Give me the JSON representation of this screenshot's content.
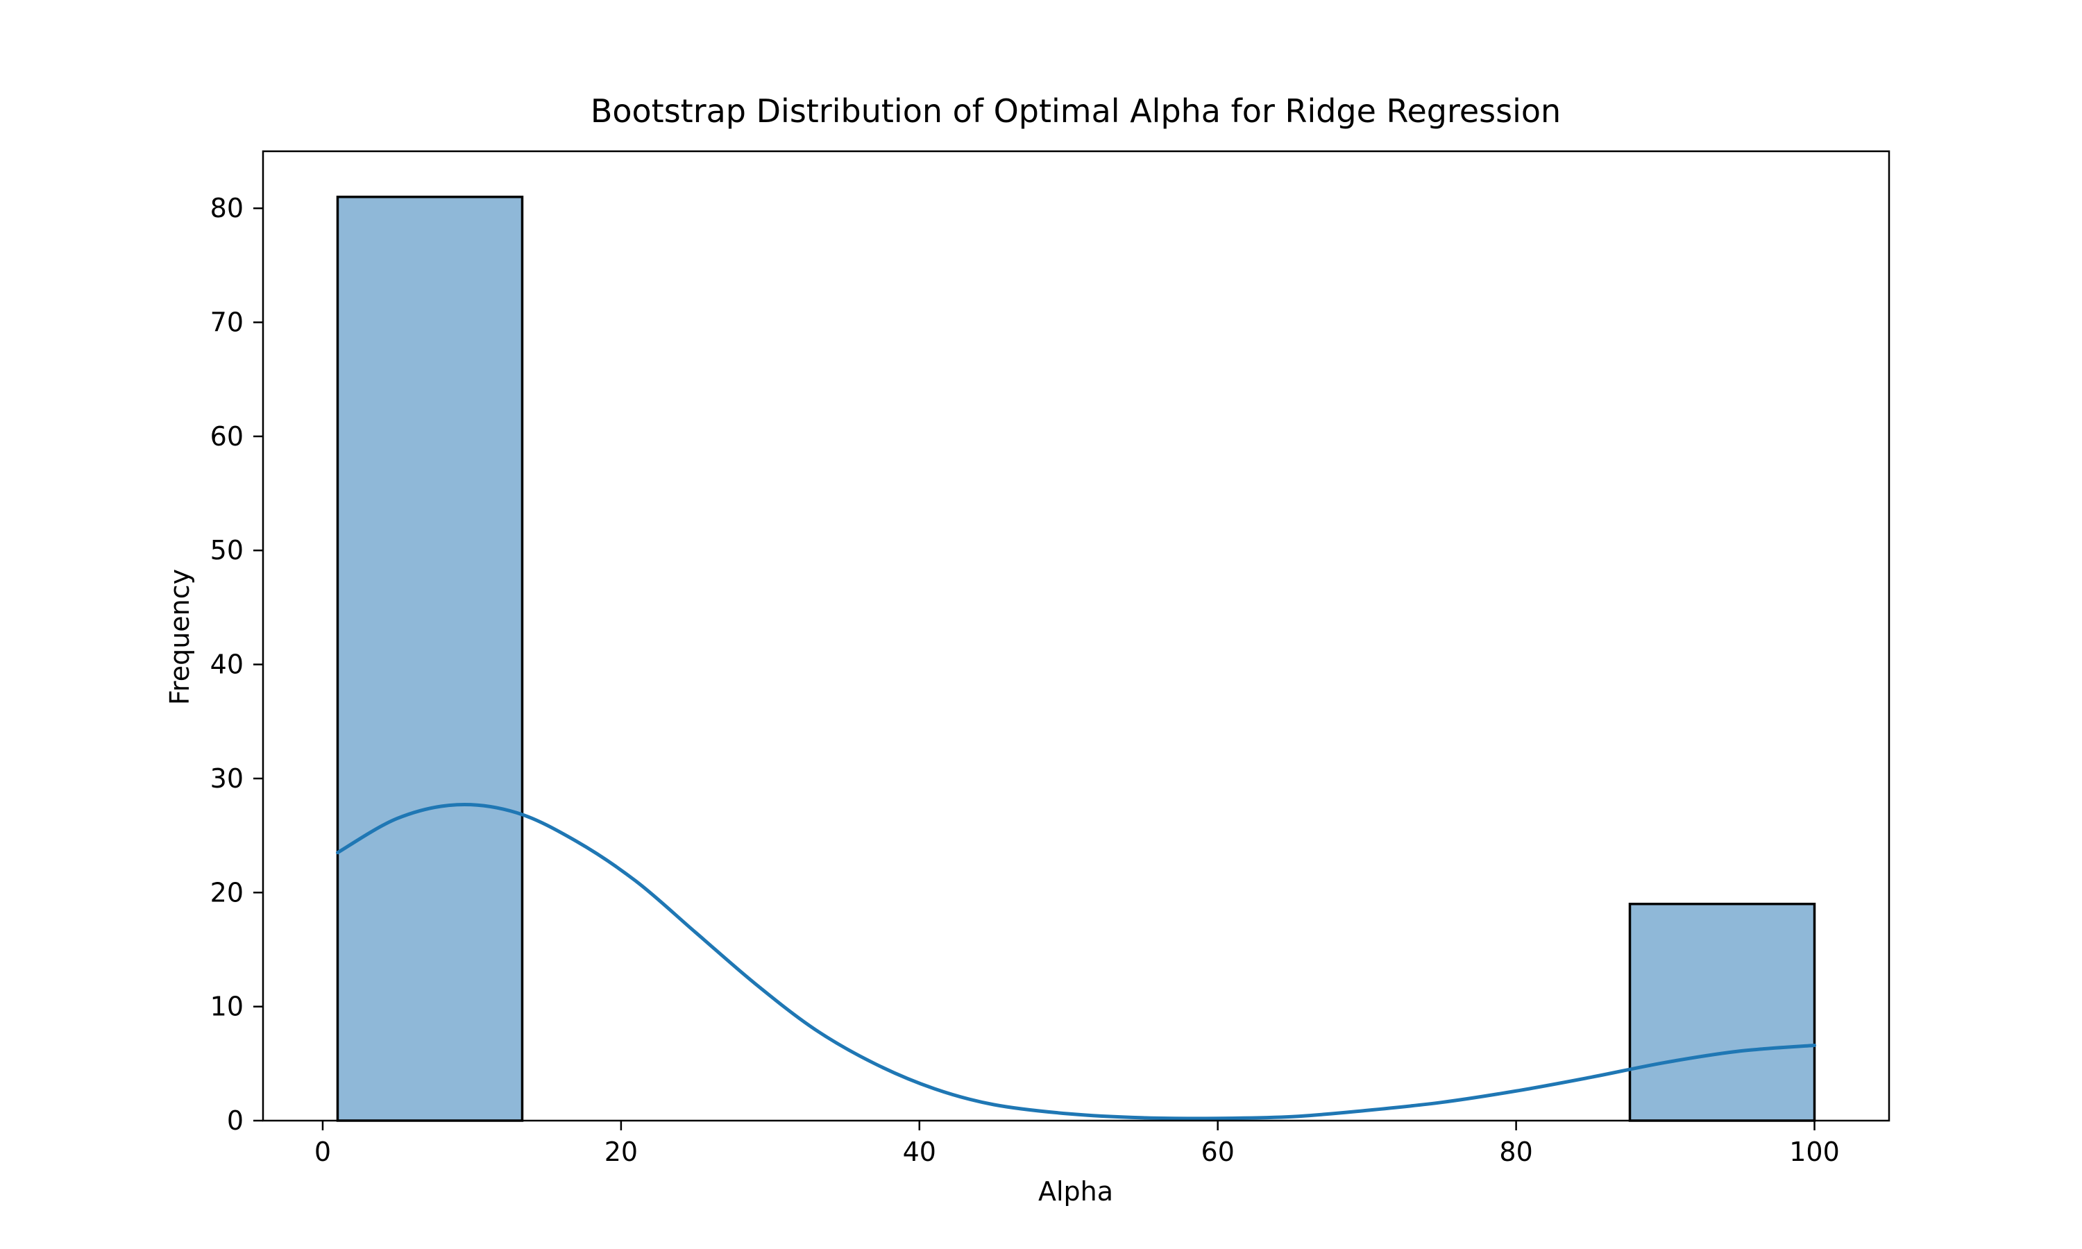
{
  "chart_data": {
    "type": "bar",
    "title": "Bootstrap Distribution of Optimal Alpha for Ridge Regression",
    "xlabel": "Alpha",
    "ylabel": "Frequency",
    "xlim": [
      -4.0,
      105.0
    ],
    "ylim": [
      0,
      85
    ],
    "xticks": [
      0,
      20,
      40,
      60,
      80,
      100
    ],
    "yticks": [
      0,
      10,
      20,
      30,
      40,
      50,
      60,
      70,
      80
    ],
    "xtick_labels": [
      "0",
      "20",
      "40",
      "60",
      "80",
      "100"
    ],
    "ytick_labels": [
      "0",
      "10",
      "20",
      "30",
      "40",
      "50",
      "60",
      "70",
      "80"
    ],
    "bins": [
      {
        "start": 1.0,
        "end": 13.375,
        "count": 81
      },
      {
        "start": 13.375,
        "end": 25.75,
        "count": 0
      },
      {
        "start": 25.75,
        "end": 38.125,
        "count": 0
      },
      {
        "start": 38.125,
        "end": 50.5,
        "count": 0
      },
      {
        "start": 50.5,
        "end": 62.875,
        "count": 0
      },
      {
        "start": 62.875,
        "end": 75.25,
        "count": 0
      },
      {
        "start": 75.25,
        "end": 87.625,
        "count": 0
      },
      {
        "start": 87.625,
        "end": 100.0,
        "count": 19
      }
    ],
    "kde": {
      "x": [
        1,
        5,
        9,
        13,
        17,
        21,
        25,
        29,
        33,
        37,
        41,
        45,
        50,
        55,
        60,
        65,
        70,
        75,
        80,
        85,
        90,
        95,
        100
      ],
      "y": [
        23.5,
        26.5,
        27.7,
        27.0,
        24.5,
        21.0,
        16.5,
        12.0,
        8.0,
        5.0,
        2.8,
        1.4,
        0.6,
        0.25,
        0.2,
        0.35,
        0.9,
        1.6,
        2.6,
        3.8,
        5.1,
        6.1,
        6.6
      ]
    },
    "grid": false,
    "legend": "none",
    "colors": {
      "bar_fill": "#8fb8d8",
      "bar_edge": "#000000",
      "kde_line": "#1f77b4",
      "axes": "#000000",
      "background": "#ffffff"
    }
  }
}
